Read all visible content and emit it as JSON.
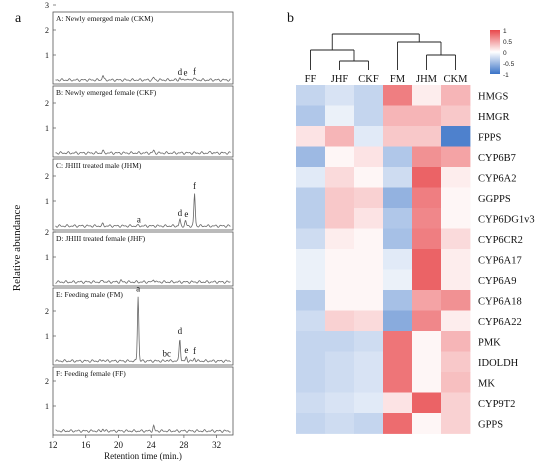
{
  "panel_a": {
    "label": "a",
    "y_axis_label": "Relative abundance",
    "x_axis_label": "Retention time (min.)",
    "x_ticks": [
      "12",
      "16",
      "20",
      "24",
      "28",
      "32"
    ],
    "y_ticks": [
      "1",
      "2",
      "3"
    ],
    "traces": [
      {
        "title": "A: Newly emerged male (CKM)",
        "ticks": [
          "1",
          "2",
          "3"
        ],
        "peaks": [
          {
            "x": 18.1,
            "h": 0.2
          },
          {
            "x": 24.3,
            "h": 0.1
          },
          {
            "x": 27.5,
            "h": 0.08
          },
          {
            "x": 28.2,
            "h": 0.06
          },
          {
            "x": 29.2,
            "h": 0.1
          }
        ],
        "letters": [
          {
            "t": "d",
            "x": 27.5,
            "h": 0.12
          },
          {
            "t": "e",
            "x": 28.2,
            "h": 0.1
          },
          {
            "t": "f",
            "x": 29.3,
            "h": 0.14
          }
        ]
      },
      {
        "title": "B: Newly emerged female (CKF)",
        "ticks": [
          "1",
          "2"
        ],
        "peaks": [
          {
            "x": 18.1,
            "h": 0.08
          },
          {
            "x": 24.3,
            "h": 0.1
          },
          {
            "x": 31.3,
            "h": 0.05
          }
        ],
        "letters": []
      },
      {
        "title": "C: JHIII treated male (JHM)",
        "ticks": [
          "1",
          "2"
        ],
        "peaks": [
          {
            "x": 18.1,
            "h": 0.08
          },
          {
            "x": 22.5,
            "h": 0.03
          },
          {
            "x": 27.5,
            "h": 0.25
          },
          {
            "x": 28.2,
            "h": 0.2
          },
          {
            "x": 29.3,
            "h": 1.3
          }
        ],
        "letters": [
          {
            "t": "a",
            "x": 22.5,
            "h": 0.06
          },
          {
            "t": "d",
            "x": 27.5,
            "h": 0.32
          },
          {
            "t": "e",
            "x": 28.3,
            "h": 0.28
          },
          {
            "t": "f",
            "x": 29.3,
            "h": 1.4
          }
        ]
      },
      {
        "title": "D: JHIII treated female (JHF)",
        "ticks": [
          "1",
          "2"
        ],
        "peaks": [
          {
            "x": 18.1,
            "h": 0.08
          },
          {
            "x": 20.3,
            "h": 0.06
          },
          {
            "x": 24.3,
            "h": 0.12
          }
        ],
        "letters": []
      },
      {
        "title": "E: Feeding male (FM)",
        "ticks": [
          "1",
          "2"
        ],
        "peaks": [
          {
            "x": 18.1,
            "h": 0.06
          },
          {
            "x": 22.4,
            "h": 2.6
          },
          {
            "x": 26.0,
            "h": 0.05
          },
          {
            "x": 27.5,
            "h": 0.9
          },
          {
            "x": 28.3,
            "h": 0.15
          },
          {
            "x": 29.3,
            "h": 0.12
          }
        ],
        "letters": [
          {
            "t": "a",
            "x": 22.4,
            "h": 2.7
          },
          {
            "t": "bc",
            "x": 25.9,
            "h": 0.1
          },
          {
            "t": "d",
            "x": 27.5,
            "h": 1.0
          },
          {
            "t": "e",
            "x": 28.3,
            "h": 0.25
          },
          {
            "t": "f",
            "x": 29.3,
            "h": 0.2
          }
        ]
      },
      {
        "title": "F: Feeding female (FF)",
        "ticks": [
          "1",
          "2"
        ],
        "peaks": [
          {
            "x": 18.1,
            "h": 0.08
          },
          {
            "x": 24.3,
            "h": 0.2
          }
        ],
        "letters": []
      }
    ]
  },
  "panel_b": {
    "label": "b",
    "columns": [
      "FF",
      "JHF",
      "CKF",
      "FM",
      "JHM",
      "CKM"
    ],
    "rows": [
      {
        "gene": "HMGS",
        "values": [
          -0.3,
          -0.2,
          -0.3,
          0.7,
          0.1,
          0.4
        ]
      },
      {
        "gene": "HMGR",
        "values": [
          -0.4,
          -0.1,
          -0.3,
          0.4,
          0.4,
          0.3
        ]
      },
      {
        "gene": "FPPS",
        "values": [
          0.15,
          0.4,
          -0.15,
          0.3,
          0.3,
          -0.9
        ]
      },
      {
        "gene": "CYP6B7",
        "values": [
          -0.5,
          0.05,
          0.15,
          -0.4,
          0.6,
          0.5
        ]
      },
      {
        "gene": "CYP6A2",
        "values": [
          -0.15,
          0.2,
          0.05,
          -0.25,
          0.85,
          0.1
        ]
      },
      {
        "gene": "GGPPS",
        "values": [
          -0.35,
          0.3,
          0.25,
          -0.55,
          0.7,
          0.05
        ]
      },
      {
        "gene": "CYP6DG1v3",
        "values": [
          -0.35,
          0.3,
          0.15,
          -0.4,
          0.65,
          0.05
        ]
      },
      {
        "gene": "CYP6CR2",
        "values": [
          -0.25,
          0.1,
          0.05,
          -0.45,
          0.7,
          0.2
        ]
      },
      {
        "gene": "CYP6A17",
        "values": [
          -0.1,
          0.05,
          0.05,
          -0.15,
          0.85,
          0.1
        ]
      },
      {
        "gene": "CYP6A9",
        "values": [
          -0.1,
          0.05,
          0.05,
          -0.1,
          0.85,
          0.1
        ]
      },
      {
        "gene": "CYP6A18",
        "values": [
          -0.35,
          0.05,
          0.05,
          -0.45,
          0.5,
          0.6
        ]
      },
      {
        "gene": "CYP6A22",
        "values": [
          -0.25,
          0.25,
          0.2,
          -0.6,
          0.65,
          0.1
        ]
      },
      {
        "gene": "PMK",
        "values": [
          -0.3,
          -0.3,
          -0.25,
          0.75,
          0.05,
          0.4
        ]
      },
      {
        "gene": "IDOLDH",
        "values": [
          -0.3,
          -0.25,
          -0.2,
          0.75,
          0.05,
          0.3
        ]
      },
      {
        "gene": "MK",
        "values": [
          -0.3,
          -0.25,
          -0.2,
          0.75,
          0.05,
          0.35
        ]
      },
      {
        "gene": "CYP9T2",
        "values": [
          -0.25,
          -0.2,
          -0.15,
          0.15,
          0.85,
          0.25
        ]
      },
      {
        "gene": "GPPS",
        "values": [
          -0.3,
          -0.25,
          -0.3,
          0.8,
          0.05,
          0.25
        ]
      }
    ],
    "colorbar": {
      "ticks": [
        "1",
        "0.5",
        "0",
        "-0.5",
        "-1"
      ],
      "low_color": "#3a73c7",
      "mid_color": "#ffffff",
      "high_color": "#e8474b"
    }
  }
}
